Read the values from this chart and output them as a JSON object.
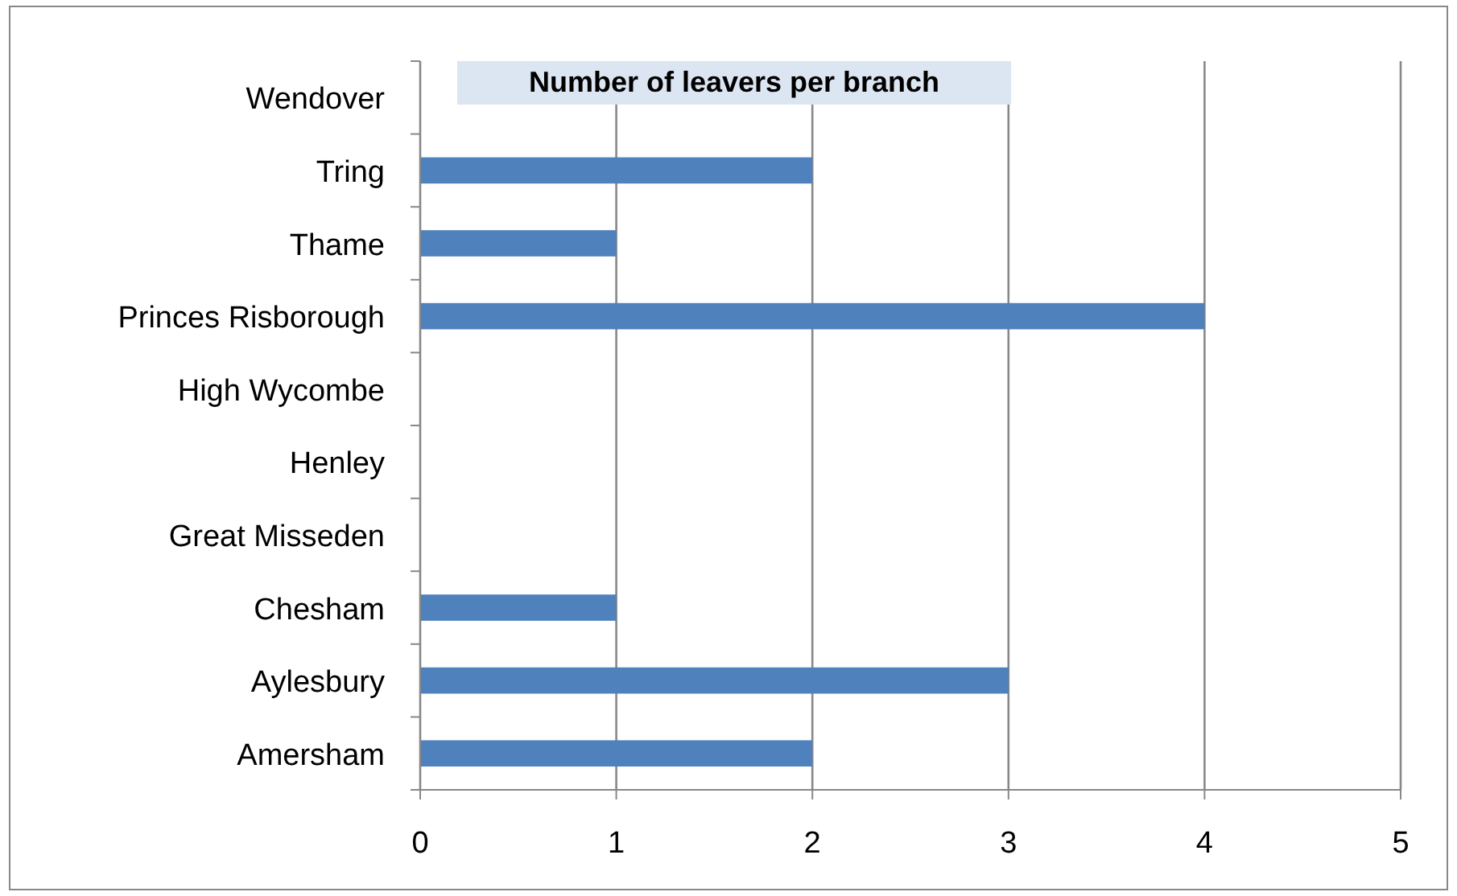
{
  "chart_data": {
    "type": "bar",
    "orientation": "horizontal",
    "title": "Number of leavers per branch",
    "categories": [
      "Wendover",
      "Tring",
      "Thame",
      "Princes Risborough",
      "High Wycombe",
      "Henley",
      "Great Misseden",
      "Chesham",
      "Aylesbury",
      "Amersham"
    ],
    "values": [
      0,
      2,
      1,
      4,
      0,
      0,
      0,
      1,
      3,
      2
    ],
    "color": "#4f81bd",
    "xlim": [
      0,
      5
    ],
    "xticks": [
      0,
      1,
      2,
      3,
      4,
      5
    ],
    "grid": "x"
  }
}
